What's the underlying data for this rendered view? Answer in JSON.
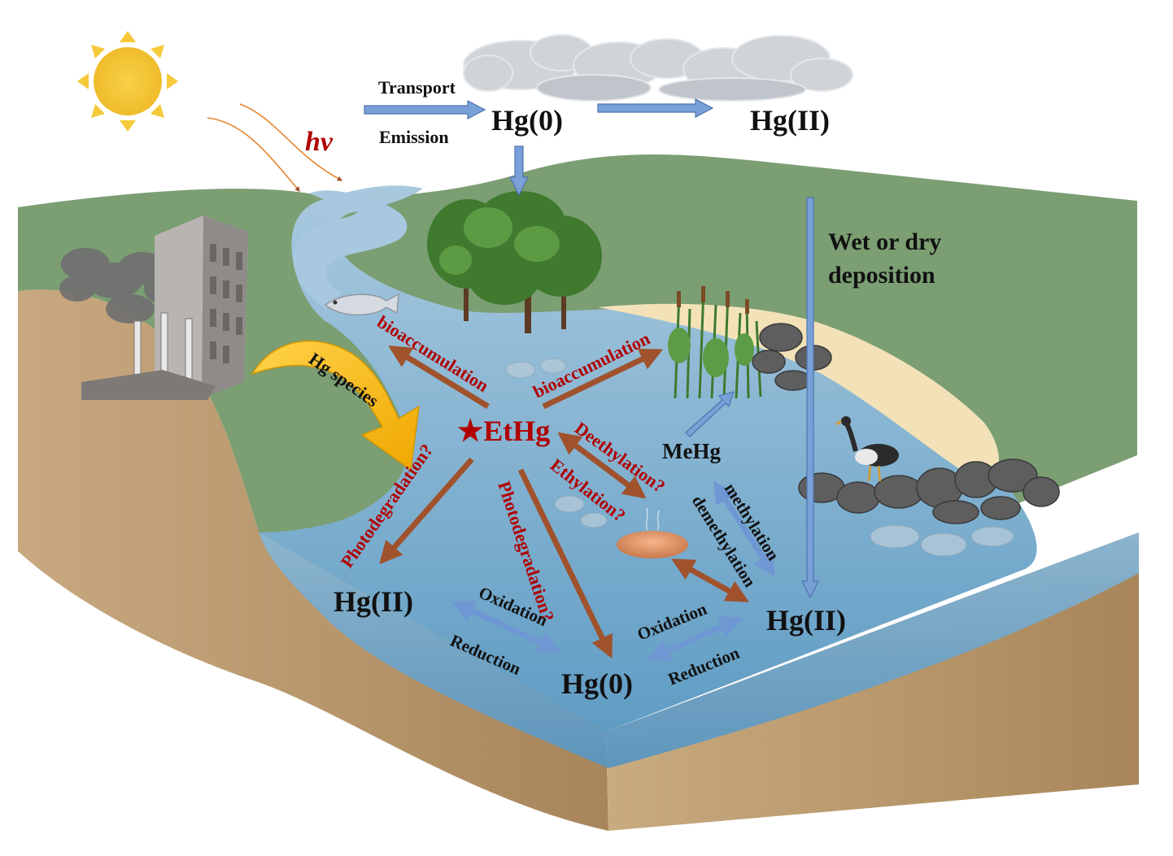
{
  "labels": {
    "hv": "hv",
    "transport": "Transport",
    "emission": "Emission",
    "hg0_air": "Hg(0)",
    "hg2_air": "Hg(II)",
    "wet_dry_1": "Wet or dry",
    "wet_dry_2": "deposition",
    "hg_species": "Hg species",
    "bioaccum_fish": "bioaccumulation",
    "bioaccum_plant": "bioaccumulation",
    "ethg": "★EtHg",
    "mehg": "MeHg",
    "deethylation": "Deethylation?",
    "ethylation": "Ethylation?",
    "methylation": "methylation",
    "demethylation": "demethylation",
    "photodeg_left": "Photodegradation?",
    "photodeg_mid": "Photodegradation?",
    "hg2_left": "Hg(II)",
    "hg0_water": "Hg(0)",
    "hg2_right": "Hg(II)",
    "oxidation_left": "Oxidation",
    "reduction_left": "Reduction",
    "oxidation_right": "Oxidation",
    "reduction_right": "Reduction"
  },
  "colors": {
    "grass": "#7a9e74",
    "soil": "#c2a27a",
    "water": "#8fb9d6",
    "sand": "#f3e2b8",
    "sun": "#f2c230",
    "arrow_blue": "#6f97d3",
    "arrow_brown": "#a0522d",
    "label_red": "#b00000"
  }
}
